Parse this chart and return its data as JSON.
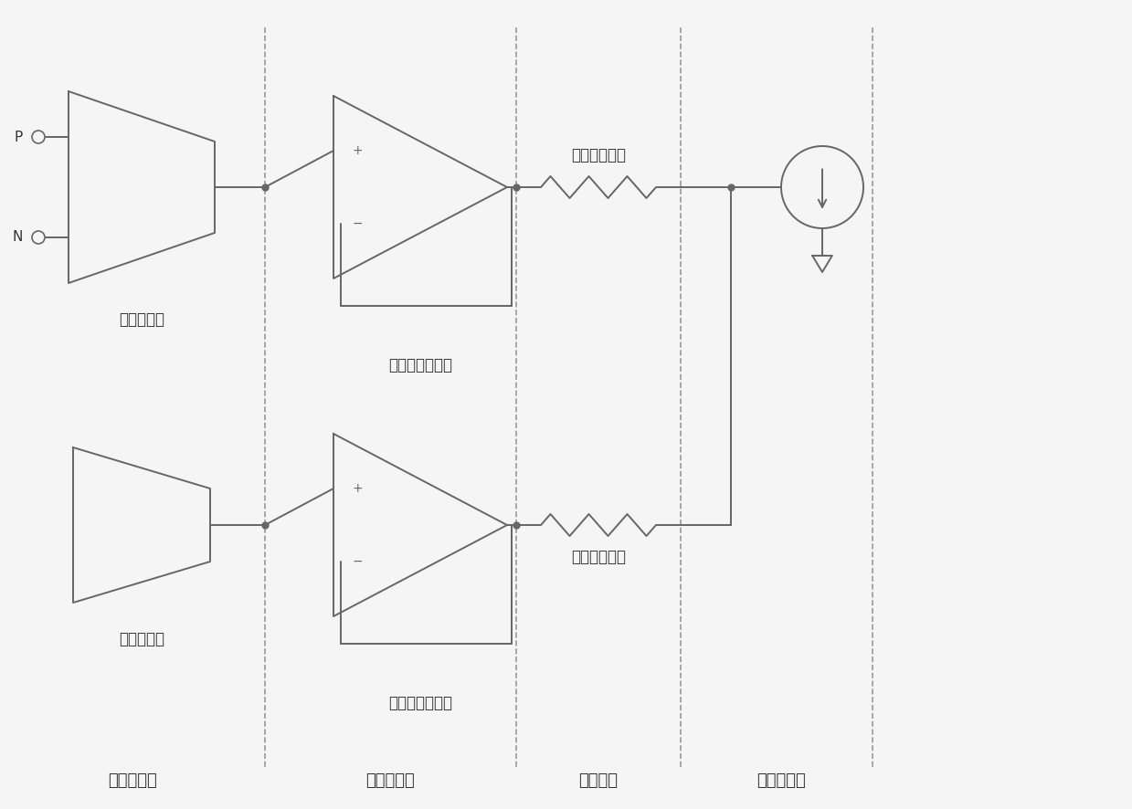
{
  "bg_color": "#f5f5f5",
  "line_color": "#666666",
  "text_color": "#333333",
  "dashed_line_color": "#999999",
  "section_labels": [
    "振幅采样器",
    "电压跟随器",
    "隔交电阵",
    "偿置电流源"
  ],
  "component_labels": {
    "envelope_detector": "包络检测器",
    "reference_voltage": "基准电压源",
    "follower1": "第一电压跟随器",
    "follower2": "第二电压跟随器",
    "resistor1_label": "第一隔交电阵",
    "resistor2_label": "第二隔交电阵"
  },
  "font_size_label": 12,
  "font_size_section": 13,
  "font_size_input": 11,
  "lw": 1.4
}
